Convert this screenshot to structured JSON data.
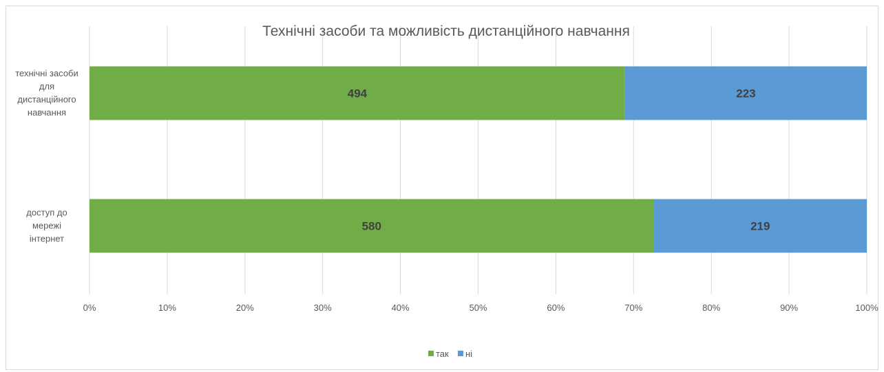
{
  "chart_data": {
    "type": "bar",
    "orientation": "horizontal",
    "stacking": "percent",
    "title": "Технічні засоби та можливість дистанційного навчання",
    "categories": [
      [
        "технічні засоби",
        "для",
        "дистанційного",
        "навчання"
      ],
      [
        "доступ до",
        "мережі",
        "інтернет"
      ]
    ],
    "series": [
      {
        "name": "так",
        "color": "#70ad47",
        "values": [
          494,
          580
        ]
      },
      {
        "name": "ні",
        "color": "#5b9bd5",
        "values": [
          223,
          219
        ]
      }
    ],
    "x_ticks": [
      "0%",
      "10%",
      "20%",
      "30%",
      "40%",
      "50%",
      "60%",
      "70%",
      "80%",
      "90%",
      "100%"
    ],
    "xlim": [
      0,
      100
    ],
    "grid": "vertical",
    "legend": "bottom",
    "colors": {
      "gridline": "#d9d9d9",
      "text": "#595959"
    }
  }
}
